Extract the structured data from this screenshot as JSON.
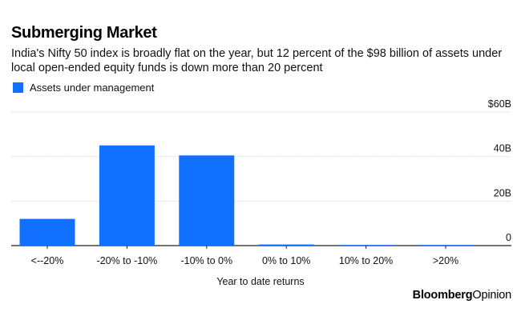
{
  "chart_data": {
    "type": "bar",
    "title": "Submerging Market",
    "subtitle": "India's Nifty 50 index is broadly flat on the year, but 12 percent of the $98 billion of assets under local open-ended equity funds is down more than 20 percent",
    "legend": [
      "Assets under management"
    ],
    "legend_placement": "top-left",
    "categories": [
      "<--20%",
      "-20% to -10%",
      "-10% to 0%",
      "0% to 10%",
      "10% to 20%",
      ">20%"
    ],
    "series": [
      {
        "name": "Assets under management",
        "values": [
          12,
          45,
          40.5,
          0.5,
          0.2,
          0.2
        ]
      }
    ],
    "xlabel": "Year to date returns",
    "ylabel": "",
    "ylim": [
      0,
      60
    ],
    "yticks": [
      0,
      20,
      40,
      60
    ],
    "ytick_labels": [
      "0",
      "20B",
      "40B",
      "$60B"
    ],
    "grid": true,
    "y_axis_side": "right",
    "bar_color": "#1170ff"
  },
  "brand": {
    "part1": "Bloomberg",
    "part2": "Opinion"
  }
}
